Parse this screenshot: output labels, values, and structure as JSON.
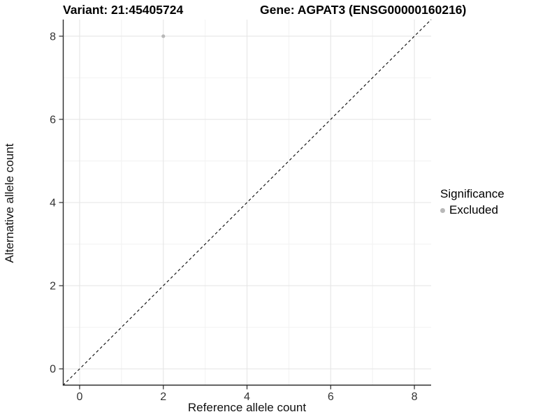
{
  "title": {
    "left": "Variant: 21:45405724",
    "right": "Gene: AGPAT3 (ENSG00000160216)"
  },
  "chart_data": {
    "type": "scatter",
    "xlabel": "Reference allele count",
    "ylabel": "Alternative allele count",
    "xlim": [
      -0.4,
      8.4
    ],
    "ylim": [
      -0.4,
      8.4
    ],
    "x_ticks": [
      0,
      2,
      4,
      6,
      8
    ],
    "y_ticks": [
      0,
      2,
      4,
      6,
      8
    ],
    "x_minor_ticks": [
      1,
      3,
      5,
      7
    ],
    "y_minor_ticks": [
      1,
      3,
      5,
      7
    ],
    "grid": "major+minor",
    "series": [
      {
        "name": "Excluded",
        "points": [
          {
            "x": 2,
            "y": 8
          }
        ],
        "color": "#b8b8b8",
        "point_radius": 2.6
      }
    ],
    "reference_line": {
      "type": "identity",
      "equation": "y = x",
      "style": "dashed",
      "color": "#111111"
    },
    "legend": {
      "title": "Significance",
      "position": "right",
      "items": [
        {
          "label": "Excluded",
          "color": "#b8b8b8"
        }
      ]
    },
    "colors": {
      "axis_line": "#2b2b2b",
      "tick_text": "#333333",
      "grid_major": "#e6e6e6",
      "grid_minor": "#f2f2f2",
      "background": "#ffffff"
    },
    "tick_font_px": 16,
    "legend_key_radius": 3.4
  }
}
